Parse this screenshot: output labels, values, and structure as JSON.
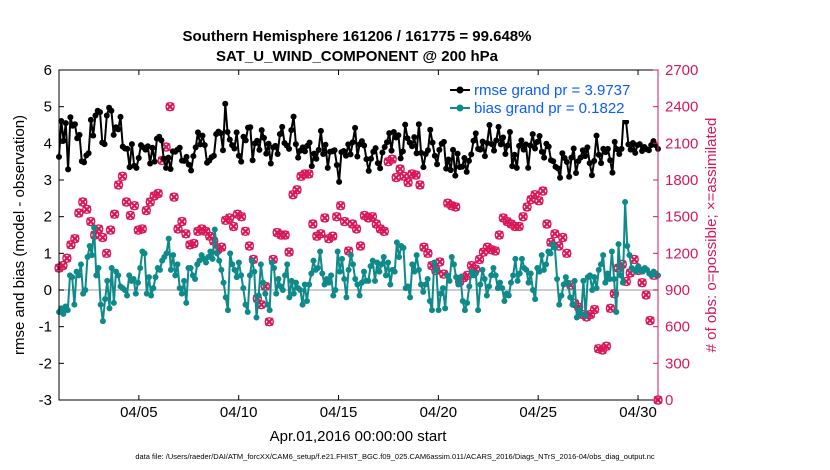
{
  "chart_data": {
    "type": "line",
    "title": [
      "Southern Hemisphere 161206 / 161775 = 99.648%",
      "SAT_U_WIND_COMPONENT @ 200 hPa"
    ],
    "xlabel": "Apr.01,2016 00:00:00 start",
    "ylabel": "rmse and bias (model - observation)",
    "ylabel_right": "# of obs: o=possible; ×=assimilated",
    "xlim": [
      1,
      31
    ],
    "ylim": [
      -3,
      6
    ],
    "ylim_right": [
      0,
      2700
    ],
    "x_ticks": [
      5,
      10,
      15,
      20,
      25,
      30
    ],
    "x_tick_labels": [
      "04/05",
      "04/10",
      "04/15",
      "04/20",
      "04/25",
      "04/30"
    ],
    "y_ticks": [
      -3,
      -2,
      -1,
      0,
      1,
      2,
      3,
      4,
      5,
      6
    ],
    "y_tick_labels": [
      "-3",
      "-2",
      "-1",
      "0",
      "1",
      "2",
      "3",
      "4",
      "5",
      "6"
    ],
    "y_right_ticks": [
      0,
      300,
      600,
      900,
      1200,
      1500,
      1800,
      2100,
      2400,
      2700
    ],
    "y_right_tick_labels": [
      "0",
      "300",
      "600",
      "900",
      "1200",
      "1500",
      "1800",
      "2100",
      "2400",
      "2700"
    ],
    "legend": [
      {
        "label": "rmse grand pr = 3.9737",
        "color": "#000000"
      },
      {
        "label": "bias grand pr = 0.1822",
        "color": "#0f8a8a"
      }
    ],
    "legend_position": "top-right",
    "footer": "data file: /Users/raeder/DAI/ATM_forcXX/CAM6_setup/f.e21.FHIST_BGC.f09_025.CAM6assim.011/ACARS_2016/Diags_NTrS_2016-04/obs_diag_output.nc",
    "colors": {
      "rmse": "#000000",
      "bias": "#0f8a8a",
      "obs": "#d8185a",
      "axis_right": "#d8185a"
    },
    "series": [
      {
        "name": "rmse",
        "values": [
          3.63,
          4.61,
          4.07,
          4.55,
          3.29,
          4.71,
          4.48,
          4.52,
          4.14,
          4.23,
          3.51,
          3.48,
          3.67,
          3.73,
          4.64,
          4.21,
          4.76,
          4.89,
          4.85,
          4.02,
          3.98,
          4.76,
          4.97,
          4.89,
          4.23,
          4.44,
          4.38,
          4.72,
          3.91,
          3.86,
          3.85,
          3.35,
          3.98,
          3.39,
          3.33,
          3.6,
          3.95,
          3.89,
          3.83,
          3.92,
          3.45,
          3.88,
          3.5,
          4.13,
          4.18,
          4.08,
          3.58,
          3.33,
          3.61,
          3.3,
          3.78,
          3.77,
          3.83,
          3.88,
          3.53,
          3.52,
          3.63,
          3.42,
          3.26,
          3.65,
          3.89,
          4.3,
          3.97,
          4.21,
          3.95,
          3.47,
          3.53,
          3.62,
          3.66,
          4.25,
          4.32,
          4.28,
          3.81,
          5.08,
          4.31,
          4.1,
          3.95,
          3.86,
          4.3,
          3.66,
          3.5,
          4.18,
          4.08,
          4.43,
          4.44,
          3.54,
          4.0,
          4.07,
          3.82,
          4.36,
          4.15,
          3.72,
          3.99,
          3.45,
          3.89,
          3.93,
          3.71,
          4.25,
          4.45,
          4.01,
          3.94,
          3.85,
          4.36,
          4.73,
          3.98,
          3.61,
          3.8,
          3.89,
          3.78,
          3.93,
          4.02,
          3.38,
          3.72,
          3.58,
          3.82,
          4.34,
          3.71,
          3.96,
          3.33,
          3.77,
          3.78,
          3.81,
          3.41,
          2.95,
          3.76,
          3.79,
          3.66,
          3.97,
          3.7,
          4.03,
          4.42,
          3.64,
          3.97,
          4.06,
          3.94,
          3.57,
          3.25,
          3.58,
          3.77,
          3.87,
          3.46,
          3.32,
          3.75,
          3.9,
          4.03,
          4.28,
          3.8,
          4.31,
          4.16,
          4.22,
          3.59,
          3.78,
          4.51,
          4.14,
          4.02,
          3.92,
          4.17,
          3.73,
          4.52,
          3.74,
          3.35,
          3.71,
          3.81,
          4.37,
          4.02,
          3.66,
          3.43,
          3.82,
          3.99,
          4.04,
          3.31,
          3.56,
          3.27,
          3.82,
          3.12,
          3.72,
          3.35,
          3.36,
          3.6,
          3.22,
          3.52,
          3.7,
          4.07,
          4.27,
          3.85,
          3.83,
          4.05,
          3.65,
          4.01,
          4.5,
          3.98,
          3.8,
          4.08,
          4.45,
          3.97,
          4.16,
          3.71,
          3.94,
          4.31,
          3.38,
          3.69,
          3.33,
          3.93,
          4.08,
          3.83,
          3.97,
          3.33,
          3.94,
          4.25,
          3.86,
          4.04,
          4.2,
          3.77,
          3.61,
          3.99,
          3.91,
          3.54,
          3.51,
          3.36,
          3.32,
          3.06,
          3.73,
          3.6,
          3.49,
          3.09,
          3.61,
          3.86,
          3.19,
          3.51,
          3.61,
          3.81,
          3.65,
          3.89,
          3.46,
          3.13,
          3.52,
          4.21,
          3.69,
          3.46,
          3.85,
          3.76,
          3.85,
          3.54,
          3.2,
          4.04,
          3.84,
          3.71,
          3.85,
          4.81,
          4.59,
          3.97,
          3.83,
          4.01,
          3.74,
          3.95,
          3.98,
          3.79,
          3.9,
          3.84,
          3.81,
          3.95,
          4.06,
          3.95,
          3.85
        ]
      },
      {
        "name": "bias",
        "values": [
          -0.6,
          -0.5,
          -0.65,
          -0.45,
          -0.55,
          0.4,
          0.35,
          -0.4,
          0.5,
          0.4,
          0.7,
          -0.1,
          0.0,
          0.9,
          1.2,
          0.95,
          1.7,
          0.4,
          0.6,
          -0.4,
          -0.85,
          -0.25,
          0.25,
          -0.5,
          0.6,
          -0.35,
          0.5,
          0.4,
          0.1,
          0.05,
          0.0,
          -0.15,
          0.4,
          0.25,
          0.3,
          -0.1,
          0.2,
          0.6,
          1.05,
          1.0,
          -0.1,
          0.35,
          -0.15,
          0.05,
          0.35,
          0.6,
          0.55,
          0.8,
          0.9,
          1.0,
          1.4,
          0.55,
          0.95,
          0.4,
          0.7,
          0.05,
          -0.1,
          0.25,
          -0.35,
          0.6,
          0.6,
          0.4,
          0.3,
          0.7,
          0.8,
          0.95,
          0.85,
          0.75,
          0.9,
          1.05,
          0.85,
          1.65,
          1.0,
          0.8,
          0.55,
          0.2,
          -0.2,
          -0.55,
          1.0,
          0.7,
          0.55,
          0.35,
          0.75,
          0.4,
          0.05,
          -0.4,
          -0.6,
          0.4,
          0.8,
          0.5,
          -0.75,
          -0.15,
          0.7,
          0.2,
          -0.1,
          -0.4,
          -0.55,
          0.75,
          0.6,
          -0.1,
          0.3,
          0.1,
          0.0,
          0.4,
          0.7,
          -0.2,
          0.25,
          -0.1,
          0.2,
          0.05,
          0.0,
          -0.4,
          0.15,
          -0.3,
          0.15,
          0.45,
          0.8,
          0.55,
          0.6,
          1.05,
          0.45,
          0.15,
          0.3,
          0.2,
          0.4,
          -0.15,
          0.0,
          1.05,
          0.5,
          0.85,
          0.3,
          -0.2,
          0.55,
          0.95,
          0.7,
          0.3,
          0.15,
          -0.15,
          0.2,
          0.5,
          0.25,
          0.25,
          0.65,
          0.8,
          0.25,
          0.75,
          0.5,
          0.7,
          0.9,
          0.4,
          0.75,
          0.15,
          0.55,
          0.5,
          1.3,
          0.9,
          1.2,
          1.15,
          0.05,
          0.1,
          -0.2,
          0.7,
          0.5,
          0.95,
          0.55,
          0.15,
          -0.05,
          0.15,
          0.3,
          -0.3,
          -0.55,
          0.75,
          0.55,
          -0.55,
          -0.1,
          0.05,
          -0.5,
          0.4,
          0.25,
          0.9,
          0.7,
          0.35,
          0.15,
          0.35,
          -0.3,
          -0.55,
          -0.35,
          0.1,
          0.5,
          0.4,
          0.45,
          -0.55,
          0.15,
          0.55,
          0.3,
          -0.15,
          0.1,
          0.4,
          0.6,
          0.4,
          0.05,
          0.2,
          0.05,
          -0.3,
          -0.1,
          -0.15,
          0.2,
          0.4,
          0.85,
          0.25,
          0.45,
          0.85,
          0.6,
          0.55,
          0.2,
          0.45,
          0.0,
          -0.25,
          0.6,
          0.5,
          0.95,
          0.55,
          0.7,
          1.05,
          1.0,
          1.25,
          1.15,
          0.3,
          -0.4,
          -0.15,
          0.15,
          0.35,
          0.2,
          -0.2,
          -0.4,
          0.25,
          -0.75,
          -0.55,
          -0.65,
          0.25,
          -0.7,
          0.35,
          0.4,
          0.0,
          0.35,
          0.05,
          0.55,
          0.7,
          0.95,
          0.2,
          0.45,
          0.3,
          1.05,
          0.3,
          -0.6,
          1.25,
          0.4,
          0.2,
          2.4,
          1.2,
          0.95,
          0.6,
          0.55,
          0.5,
          0.65,
          0.55,
          0.5,
          0.6,
          0.55,
          0.45,
          0.4,
          0.5,
          0.45,
          0.4
        ]
      },
      {
        "name": "obs_assimilated",
        "values": [
          1080,
          1100,
          1160,
          1270,
          1320,
          1530,
          1620,
          1560,
          1460,
          1350,
          1400,
          1330,
          1200,
          1390,
          1520,
          1760,
          1830,
          1620,
          1510,
          1590,
          1390,
          1400,
          1550,
          1620,
          1670,
          1690,
          1960,
          2070,
          2400,
          1660,
          1400,
          1460,
          1360,
          1270,
          1280,
          1380,
          1400,
          1380,
          1340,
          1300,
          1230,
          1250,
          1470,
          1490,
          1420,
          1520,
          1500,
          1380,
          1260,
          1150,
          830,
          780,
          930,
          640,
          1150,
          1370,
          1350,
          1350,
          1210,
          1680,
          1720,
          1830,
          1850,
          1850,
          1440,
          1340,
          1360,
          1490,
          1320,
          1340,
          1500,
          1590,
          1460,
          1220,
          1440,
          1400,
          1260,
          1510,
          1490,
          1500,
          1440,
          1400,
          1380,
          1950,
          1970,
          1820,
          1890,
          1830,
          1780,
          1850,
          1840,
          1760,
          1250,
          1200,
          1100,
          1060,
          1130,
          1030,
          1610,
          1590,
          1580,
          970,
          1000,
          1020,
          1100,
          1070,
          1150,
          1210,
          1250,
          1230,
          1220,
          1350,
          1490,
          1460,
          1440,
          1420,
          1420,
          1500,
          1580,
          1640,
          1680,
          1630,
          1710,
          1440,
          1290,
          1360,
          1260,
          1330,
          1200,
          940,
          790,
          760,
          700,
          680,
          700,
          740,
          420,
          410,
          440,
          750,
          870,
          1080,
          1110,
          970,
          1040,
          1150,
          1060,
          960,
          860,
          650,
          1020,
          0
        ]
      },
      {
        "name": "obs_possible",
        "values": [
          1080,
          1100,
          1160,
          1270,
          1320,
          1530,
          1620,
          1560,
          1460,
          1350,
          1400,
          1330,
          1200,
          1390,
          1520,
          1760,
          1830,
          1620,
          1510,
          1590,
          1390,
          1400,
          1550,
          1620,
          1670,
          1690,
          1960,
          2070,
          2400,
          1660,
          1400,
          1460,
          1360,
          1270,
          1280,
          1380,
          1400,
          1380,
          1340,
          1300,
          1230,
          1250,
          1470,
          1490,
          1420,
          1520,
          1500,
          1380,
          1260,
          1150,
          830,
          780,
          930,
          640,
          1150,
          1370,
          1350,
          1350,
          1210,
          1680,
          1720,
          1830,
          1850,
          1850,
          1440,
          1340,
          1360,
          1490,
          1320,
          1340,
          1500,
          1590,
          1460,
          1220,
          1440,
          1400,
          1260,
          1510,
          1490,
          1500,
          1440,
          1400,
          1380,
          1950,
          1970,
          1820,
          1890,
          1830,
          1780,
          1850,
          1840,
          1760,
          1250,
          1200,
          1100,
          1060,
          1130,
          1030,
          1610,
          1590,
          1580,
          970,
          1000,
          1020,
          1100,
          1070,
          1150,
          1210,
          1250,
          1230,
          1220,
          1350,
          1490,
          1460,
          1440,
          1420,
          1420,
          1500,
          1580,
          1640,
          1680,
          1630,
          1710,
          1440,
          1290,
          1360,
          1260,
          1330,
          1200,
          940,
          790,
          760,
          700,
          680,
          700,
          740,
          420,
          410,
          440,
          750,
          870,
          1080,
          1110,
          970,
          1040,
          1150,
          1060,
          960,
          860,
          650,
          1020,
          0
        ]
      }
    ]
  }
}
